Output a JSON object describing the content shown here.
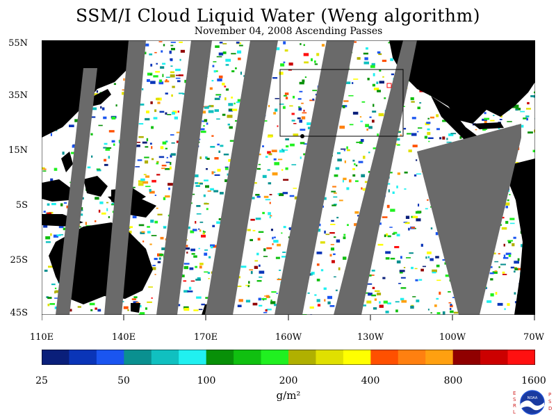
{
  "title": "SSM/I Cloud Liquid Water (Weng algorithm)",
  "subtitle": "November 04, 2008  Ascending Passes",
  "lat_labels": [
    "55N",
    "35N",
    "15N",
    "5S",
    "25S",
    "45S"
  ],
  "lon_labels": [
    "110E",
    "140E",
    "170E",
    "160W",
    "130W",
    "100W",
    "70W"
  ],
  "colorbar": {
    "ticks": [
      "25",
      "50",
      "100",
      "200",
      "400",
      "800",
      "1600"
    ],
    "unit": "g/m²",
    "colors": [
      "#0a1f7a",
      "#0a35b8",
      "#1a55f0",
      "#0a9090",
      "#10c0c0",
      "#20f0f0",
      "#089008",
      "#10c010",
      "#20f020",
      "#b0b000",
      "#e0e000",
      "#ffff00",
      "#ff5000",
      "#ff8010",
      "#ffa010",
      "#900000",
      "#cc0000",
      "#ff1010"
    ]
  },
  "map": {
    "land_color": "#000000",
    "gap_color": "#6a6a6a",
    "clear_color": "#ffffff"
  },
  "logo": {
    "left_letters": "ESRL",
    "right_letters": "PSD",
    "center_text": "NOAA"
  }
}
